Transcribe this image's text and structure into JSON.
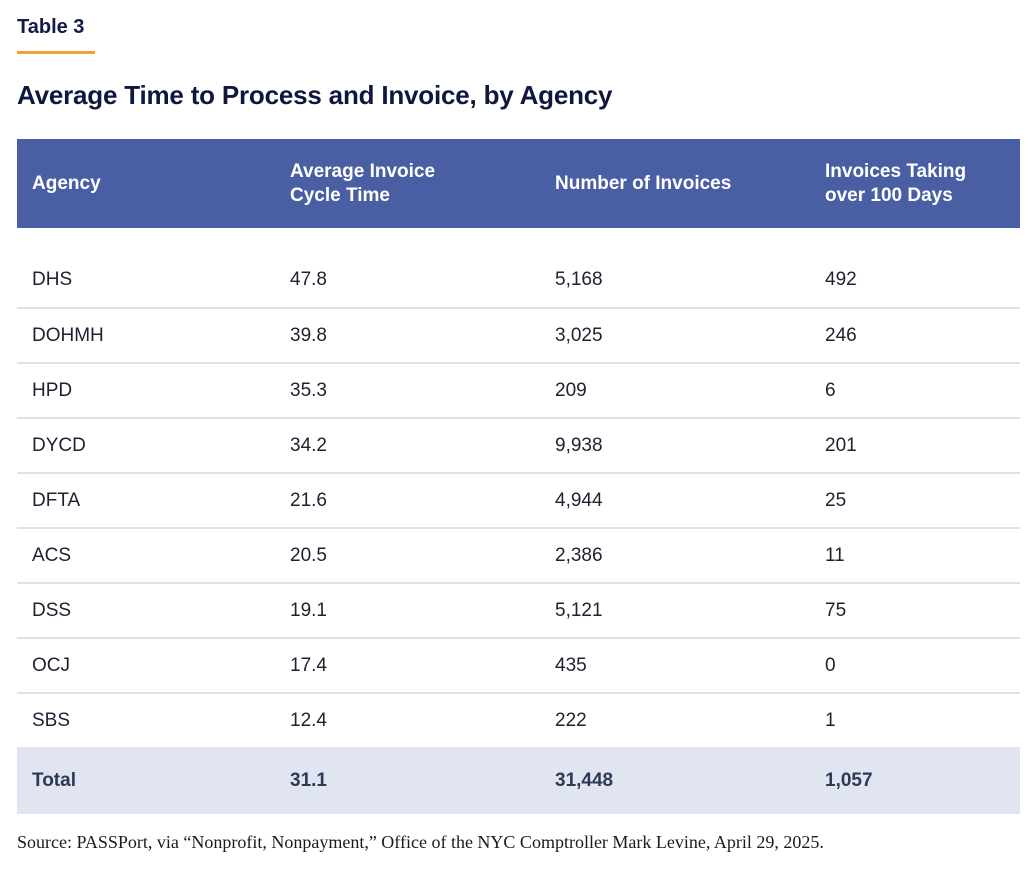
{
  "page": {
    "table_label": "Table 3",
    "title": "Average Time to Process and Invoice, by Agency"
  },
  "colors": {
    "header_bg": "#4a5ea4",
    "header_text": "#ffffff",
    "title_text": "#131c47",
    "accent_rule": "#f0a135",
    "row_divider": "#dce1ee",
    "total_row_bg": "#e0e5f1",
    "body_text": "#1d2130",
    "total_text": "#2c3a56"
  },
  "chart_data": {
    "type": "table",
    "table_label": "Table 3",
    "title": "Average Time to Process and Invoice, by Agency",
    "columns": [
      "Agency",
      "Average Invoice Cycle Time",
      "Number of Invoices",
      "Invoices Taking over 100 Days"
    ],
    "rows": [
      [
        "DHS",
        "47.8",
        "5,168",
        "492"
      ],
      [
        "DOHMH",
        "39.8",
        "3,025",
        "246"
      ],
      [
        "HPD",
        "35.3",
        "209",
        "6"
      ],
      [
        "DYCD",
        "34.2",
        "9,938",
        "201"
      ],
      [
        "DFTA",
        "21.6",
        "4,944",
        "25"
      ],
      [
        "ACS",
        "20.5",
        "2,386",
        "11"
      ],
      [
        "DSS",
        "19.1",
        "5,121",
        "75"
      ],
      [
        "OCJ",
        "17.4",
        "435",
        "0"
      ],
      [
        "SBS",
        "12.4",
        "222",
        "1"
      ]
    ],
    "total": [
      "Total",
      "31.1",
      "31,448",
      "1,057"
    ],
    "source": "Source: PASSPort, via “Nonprofit, Nonpayment,” Office of the NYC Comptroller Mark Levine, April 29, 2025."
  }
}
